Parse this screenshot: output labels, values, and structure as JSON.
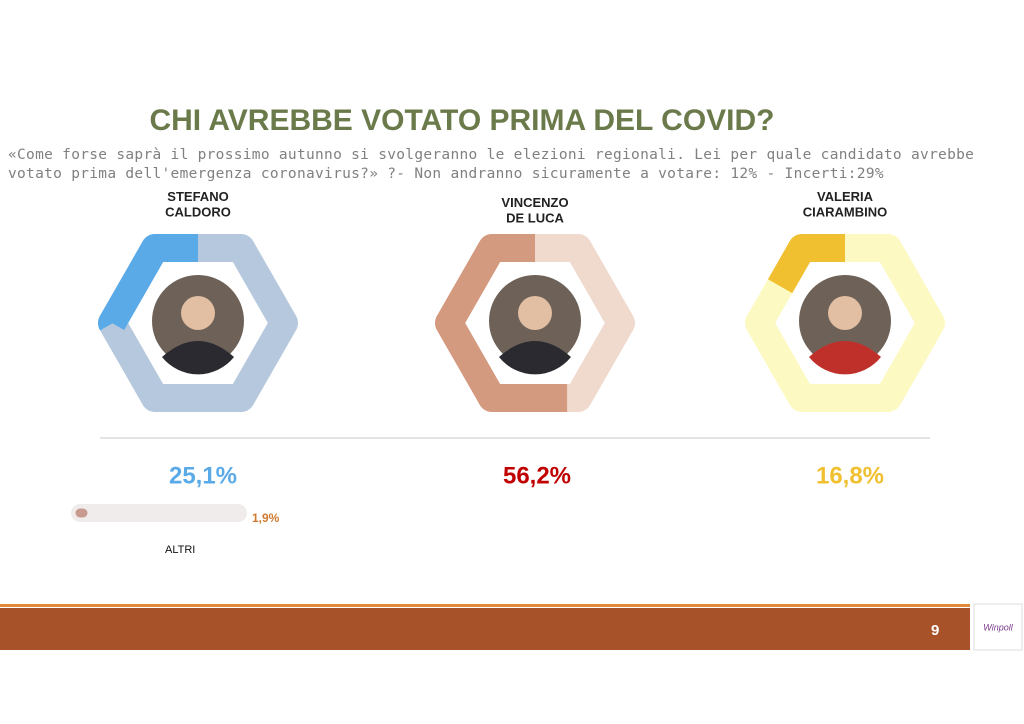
{
  "title": "CHI AVREBBE VOTATO PRIMA DEL COVID?",
  "subtitle": [
    "«Come forse saprà il prossimo autunno si svolgeranno le elezioni regionali. Lei per quale candidato avrebbe",
    "votato prima dell'emergenza coronavirus?» ?- Non andranno sicuramente a votare: 12%    - Incerti:29%"
  ],
  "chart_data": {
    "type": "hexdonut",
    "categories": [
      "STEFANO\nCALDORO",
      "VINCENZO\nDE LUCA",
      "VALERIA\nCIARAMBINO"
    ],
    "values": [
      25.1,
      56.2,
      16.8
    ],
    "value_labels": [
      "25,1%",
      "56,2%",
      "16,8%"
    ],
    "colors": [
      "#5aaae8",
      "#d49a80",
      "#f0c030"
    ],
    "track_colors": [
      "#b5c8dd",
      "#f0d9cd",
      "#fcf9c2"
    ],
    "label_colors": [
      "#5aaae8",
      "#c00000",
      "#f0c030"
    ],
    "ylim": [
      0,
      100
    ]
  },
  "others": {
    "name": "ALTRI",
    "value": 1.9,
    "value_label": "1,9%",
    "xlim": [
      0,
      100
    ]
  },
  "footer": {
    "page": "9",
    "logo": "Winpoll"
  }
}
